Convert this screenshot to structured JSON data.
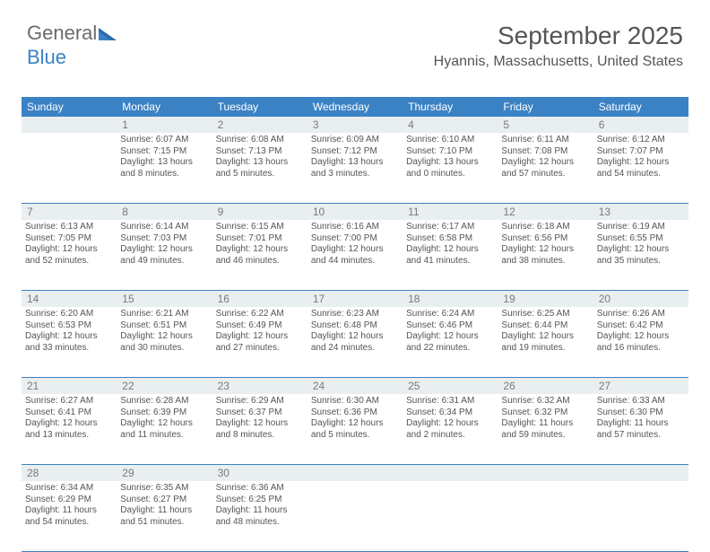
{
  "logo": {
    "text1": "General",
    "text2": "Blue"
  },
  "header": {
    "month_title": "September 2025",
    "location": "Hyannis, Massachusetts, United States"
  },
  "colors": {
    "header_bg": "#3b82c4",
    "header_fg": "#ffffff",
    "daynum_bg": "#e9eef1",
    "text": "#555555",
    "rule": "#3b82c4"
  },
  "day_names": [
    "Sunday",
    "Monday",
    "Tuesday",
    "Wednesday",
    "Thursday",
    "Friday",
    "Saturday"
  ],
  "weeks": [
    {
      "nums": [
        "",
        "1",
        "2",
        "3",
        "4",
        "5",
        "6"
      ],
      "cells": [
        null,
        {
          "sunrise": "Sunrise: 6:07 AM",
          "sunset": "Sunset: 7:15 PM",
          "daylight": "Daylight: 13 hours and 8 minutes."
        },
        {
          "sunrise": "Sunrise: 6:08 AM",
          "sunset": "Sunset: 7:13 PM",
          "daylight": "Daylight: 13 hours and 5 minutes."
        },
        {
          "sunrise": "Sunrise: 6:09 AM",
          "sunset": "Sunset: 7:12 PM",
          "daylight": "Daylight: 13 hours and 3 minutes."
        },
        {
          "sunrise": "Sunrise: 6:10 AM",
          "sunset": "Sunset: 7:10 PM",
          "daylight": "Daylight: 13 hours and 0 minutes."
        },
        {
          "sunrise": "Sunrise: 6:11 AM",
          "sunset": "Sunset: 7:08 PM",
          "daylight": "Daylight: 12 hours and 57 minutes."
        },
        {
          "sunrise": "Sunrise: 6:12 AM",
          "sunset": "Sunset: 7:07 PM",
          "daylight": "Daylight: 12 hours and 54 minutes."
        }
      ]
    },
    {
      "nums": [
        "7",
        "8",
        "9",
        "10",
        "11",
        "12",
        "13"
      ],
      "cells": [
        {
          "sunrise": "Sunrise: 6:13 AM",
          "sunset": "Sunset: 7:05 PM",
          "daylight": "Daylight: 12 hours and 52 minutes."
        },
        {
          "sunrise": "Sunrise: 6:14 AM",
          "sunset": "Sunset: 7:03 PM",
          "daylight": "Daylight: 12 hours and 49 minutes."
        },
        {
          "sunrise": "Sunrise: 6:15 AM",
          "sunset": "Sunset: 7:01 PM",
          "daylight": "Daylight: 12 hours and 46 minutes."
        },
        {
          "sunrise": "Sunrise: 6:16 AM",
          "sunset": "Sunset: 7:00 PM",
          "daylight": "Daylight: 12 hours and 44 minutes."
        },
        {
          "sunrise": "Sunrise: 6:17 AM",
          "sunset": "Sunset: 6:58 PM",
          "daylight": "Daylight: 12 hours and 41 minutes."
        },
        {
          "sunrise": "Sunrise: 6:18 AM",
          "sunset": "Sunset: 6:56 PM",
          "daylight": "Daylight: 12 hours and 38 minutes."
        },
        {
          "sunrise": "Sunrise: 6:19 AM",
          "sunset": "Sunset: 6:55 PM",
          "daylight": "Daylight: 12 hours and 35 minutes."
        }
      ]
    },
    {
      "nums": [
        "14",
        "15",
        "16",
        "17",
        "18",
        "19",
        "20"
      ],
      "cells": [
        {
          "sunrise": "Sunrise: 6:20 AM",
          "sunset": "Sunset: 6:53 PM",
          "daylight": "Daylight: 12 hours and 33 minutes."
        },
        {
          "sunrise": "Sunrise: 6:21 AM",
          "sunset": "Sunset: 6:51 PM",
          "daylight": "Daylight: 12 hours and 30 minutes."
        },
        {
          "sunrise": "Sunrise: 6:22 AM",
          "sunset": "Sunset: 6:49 PM",
          "daylight": "Daylight: 12 hours and 27 minutes."
        },
        {
          "sunrise": "Sunrise: 6:23 AM",
          "sunset": "Sunset: 6:48 PM",
          "daylight": "Daylight: 12 hours and 24 minutes."
        },
        {
          "sunrise": "Sunrise: 6:24 AM",
          "sunset": "Sunset: 6:46 PM",
          "daylight": "Daylight: 12 hours and 22 minutes."
        },
        {
          "sunrise": "Sunrise: 6:25 AM",
          "sunset": "Sunset: 6:44 PM",
          "daylight": "Daylight: 12 hours and 19 minutes."
        },
        {
          "sunrise": "Sunrise: 6:26 AM",
          "sunset": "Sunset: 6:42 PM",
          "daylight": "Daylight: 12 hours and 16 minutes."
        }
      ]
    },
    {
      "nums": [
        "21",
        "22",
        "23",
        "24",
        "25",
        "26",
        "27"
      ],
      "cells": [
        {
          "sunrise": "Sunrise: 6:27 AM",
          "sunset": "Sunset: 6:41 PM",
          "daylight": "Daylight: 12 hours and 13 minutes."
        },
        {
          "sunrise": "Sunrise: 6:28 AM",
          "sunset": "Sunset: 6:39 PM",
          "daylight": "Daylight: 12 hours and 11 minutes."
        },
        {
          "sunrise": "Sunrise: 6:29 AM",
          "sunset": "Sunset: 6:37 PM",
          "daylight": "Daylight: 12 hours and 8 minutes."
        },
        {
          "sunrise": "Sunrise: 6:30 AM",
          "sunset": "Sunset: 6:36 PM",
          "daylight": "Daylight: 12 hours and 5 minutes."
        },
        {
          "sunrise": "Sunrise: 6:31 AM",
          "sunset": "Sunset: 6:34 PM",
          "daylight": "Daylight: 12 hours and 2 minutes."
        },
        {
          "sunrise": "Sunrise: 6:32 AM",
          "sunset": "Sunset: 6:32 PM",
          "daylight": "Daylight: 11 hours and 59 minutes."
        },
        {
          "sunrise": "Sunrise: 6:33 AM",
          "sunset": "Sunset: 6:30 PM",
          "daylight": "Daylight: 11 hours and 57 minutes."
        }
      ]
    },
    {
      "nums": [
        "28",
        "29",
        "30",
        "",
        "",
        "",
        ""
      ],
      "cells": [
        {
          "sunrise": "Sunrise: 6:34 AM",
          "sunset": "Sunset: 6:29 PM",
          "daylight": "Daylight: 11 hours and 54 minutes."
        },
        {
          "sunrise": "Sunrise: 6:35 AM",
          "sunset": "Sunset: 6:27 PM",
          "daylight": "Daylight: 11 hours and 51 minutes."
        },
        {
          "sunrise": "Sunrise: 6:36 AM",
          "sunset": "Sunset: 6:25 PM",
          "daylight": "Daylight: 11 hours and 48 minutes."
        },
        null,
        null,
        null,
        null
      ]
    }
  ]
}
